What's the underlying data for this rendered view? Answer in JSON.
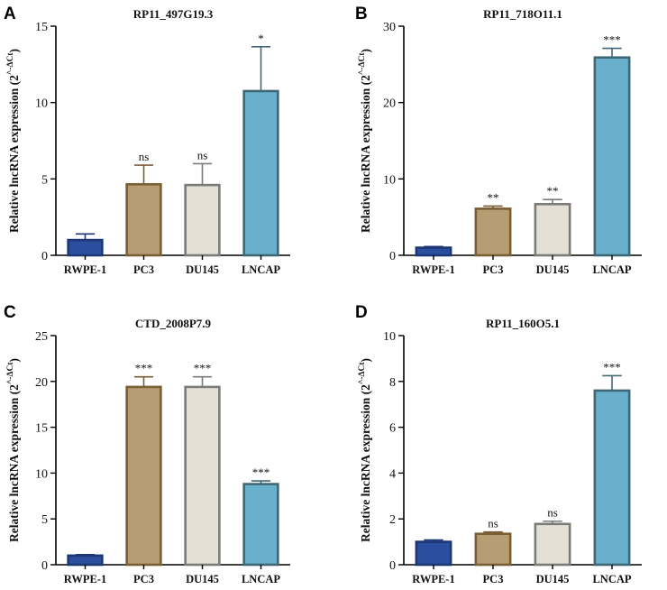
{
  "figure": {
    "ylabel_prefix": "Relative lncRNA expression (2",
    "ylabel_exponent": "^-ΔCt",
    "ylabel_suffix": ")"
  },
  "chart_data": [
    {
      "panel": "A",
      "type": "bar",
      "title": "RP11_497G19.3",
      "categories": [
        "RWPE-1",
        "PC3",
        "DU145",
        "LNCAP"
      ],
      "values": [
        1.0,
        4.65,
        4.6,
        10.75
      ],
      "errors": [
        0.4,
        1.25,
        1.4,
        2.9
      ],
      "significance": [
        "",
        "ns",
        "ns",
        "*"
      ],
      "ylim": [
        0,
        15
      ],
      "yticks": [
        0,
        5,
        10,
        15
      ],
      "ylabel": "Relative lncRNA expression (2^-ΔCt)"
    },
    {
      "panel": "B",
      "type": "bar",
      "title": "RP11_718O11.1",
      "categories": [
        "RWPE-1",
        "PC3",
        "DU145",
        "LNCAP"
      ],
      "values": [
        1.0,
        6.1,
        6.7,
        25.9
      ],
      "errors": [
        0.15,
        0.35,
        0.6,
        1.2
      ],
      "significance": [
        "",
        "**",
        "**",
        "***"
      ],
      "ylim": [
        0,
        30
      ],
      "yticks": [
        0,
        10,
        20,
        30
      ],
      "ylabel": "Relative lncRNA expression (2^-ΔCt)"
    },
    {
      "panel": "C",
      "type": "bar",
      "title": "CTD_2008P7.9",
      "categories": [
        "RWPE-1",
        "PC3",
        "DU145",
        "LNCAP"
      ],
      "values": [
        1.0,
        19.4,
        19.4,
        8.8
      ],
      "errors": [
        0.1,
        1.1,
        1.1,
        0.35
      ],
      "significance": [
        "",
        "***",
        "***",
        "***"
      ],
      "ylim": [
        0,
        25
      ],
      "yticks": [
        0,
        5,
        10,
        15,
        20,
        25
      ],
      "ylabel": "Relative lncRNA expression (2^-ΔCt)"
    },
    {
      "panel": "D",
      "type": "bar",
      "title": "RP11_160O5.1",
      "categories": [
        "RWPE-1",
        "PC3",
        "DU145",
        "LNCAP"
      ],
      "values": [
        1.0,
        1.35,
        1.78,
        7.6
      ],
      "errors": [
        0.08,
        0.08,
        0.12,
        0.65
      ],
      "significance": [
        "",
        "ns",
        "ns",
        "***"
      ],
      "ylim": [
        0,
        10
      ],
      "yticks": [
        0,
        2,
        4,
        6,
        8,
        10
      ],
      "ylabel": "Relative lncRNA expression (2^-ΔCt)"
    }
  ],
  "colors": {
    "fills": [
      "#2b4f9e",
      "#b89d74",
      "#e5e0d6",
      "#6aafcc"
    ],
    "strokes": [
      "#1d3775",
      "#7a5e34",
      "#7b7b78",
      "#3f6877"
    ]
  }
}
